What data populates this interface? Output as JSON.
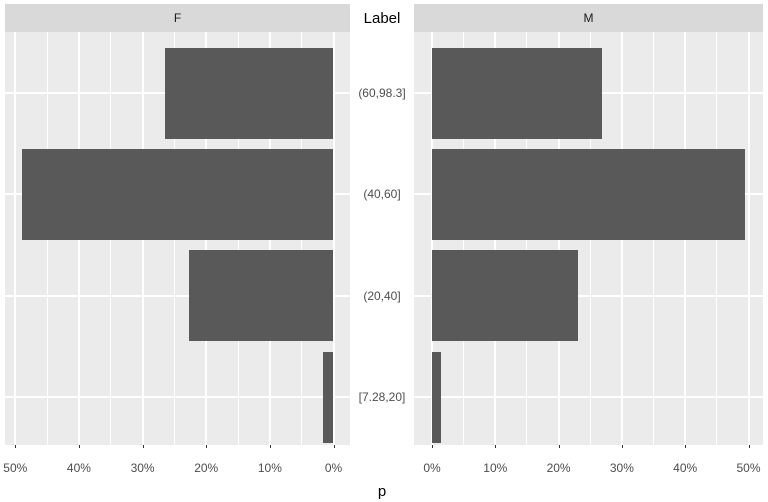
{
  "chart_data": {
    "type": "bar",
    "orientation": "horizontal-pyramid",
    "title": "",
    "center_axis_title": "Label",
    "xlabel": "p",
    "categories": [
      "(60,98.3]",
      "(40,60]",
      "(20,40]",
      "[7.28,20]"
    ],
    "x_range_percent": [
      0,
      50
    ],
    "x_tick_step_percent": 10,
    "grid": true,
    "legend": "none",
    "facets": [
      {
        "label": "F",
        "axis_reversed": true,
        "x_ticks": [
          "50%",
          "40%",
          "30%",
          "20%",
          "10%",
          "0%"
        ],
        "values_percent": [
          26.5,
          48.9,
          22.7,
          1.7
        ]
      },
      {
        "label": "M",
        "axis_reversed": false,
        "x_ticks": [
          "0%",
          "10%",
          "20%",
          "30%",
          "40%",
          "50%"
        ],
        "values_percent": [
          26.9,
          49.4,
          23.1,
          1.5
        ]
      }
    ],
    "colors": {
      "bar": "#595959",
      "panel_background": "#EBEBEB",
      "strip_background": "#D9D9D9",
      "gridline": "#FFFFFF",
      "tick_text": "#4D4D4D",
      "title_text": "#000000",
      "strip_text": "#1A1A1A",
      "axis_tick_mark": "#333333"
    }
  }
}
